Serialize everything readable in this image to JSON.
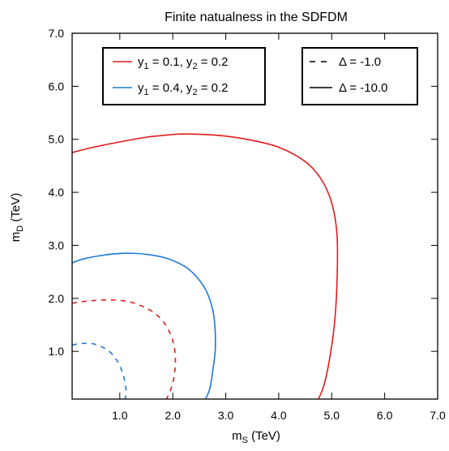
{
  "chart_data": {
    "type": "line",
    "title": "Finite natualness in the SDFDM",
    "xlabel": {
      "main": "m",
      "sub": "S",
      "unit": " (TeV)"
    },
    "ylabel": {
      "main": "m",
      "sub": "D",
      "unit": " (TeV)"
    },
    "xlim": [
      0.1,
      7.0
    ],
    "ylim": [
      0.1,
      7.0
    ],
    "xticks": [
      1.0,
      2.0,
      3.0,
      4.0,
      5.0,
      6.0,
      7.0
    ],
    "xtick_labels": [
      "1.0",
      "2.0",
      "3.0",
      "4.0",
      "5.0",
      "6.0",
      "7.0"
    ],
    "yticks": [
      1.0,
      2.0,
      3.0,
      4.0,
      5.0,
      6.0,
      7.0
    ],
    "ytick_labels": [
      "1.0",
      "2.0",
      "3.0",
      "4.0",
      "5.0",
      "6.0",
      "7.0"
    ],
    "grid": false,
    "legend_colors": {
      "placement": "top-left",
      "entries": [
        {
          "color": "#e31a1c",
          "y1": "0.1",
          "y2": "0.2"
        },
        {
          "color": "#1f78d8",
          "y1": "0.4",
          "y2": "0.2"
        }
      ]
    },
    "legend_styles": {
      "placement": "top-right",
      "entries": [
        {
          "dash": "dashed",
          "label": "Δ = -1.0"
        },
        {
          "dash": "solid",
          "label": "Δ = -10.0"
        }
      ]
    },
    "series": [
      {
        "color": "#e31a1c",
        "dash": "solid",
        "x": [
          0.1,
          0.5,
          1.0,
          1.5,
          2.0,
          2.2,
          2.6,
          3.0,
          3.5,
          4.0,
          4.5,
          4.8,
          5.0,
          5.1,
          5.1,
          5.05,
          4.95,
          4.85,
          4.75
        ],
        "y": [
          4.75,
          4.85,
          4.95,
          5.04,
          5.09,
          5.1,
          5.09,
          5.06,
          4.98,
          4.85,
          4.58,
          4.25,
          3.8,
          3.2,
          2.3,
          1.5,
          0.8,
          0.35,
          0.1
        ]
      },
      {
        "color": "#1f78d8",
        "dash": "solid",
        "x": [
          0.1,
          0.3,
          0.6,
          0.9,
          1.2,
          1.5,
          1.9,
          2.3,
          2.6,
          2.75,
          2.8,
          2.8,
          2.75,
          2.7,
          2.62
        ],
        "y": [
          2.67,
          2.74,
          2.8,
          2.84,
          2.85,
          2.83,
          2.75,
          2.55,
          2.2,
          1.8,
          1.4,
          1.0,
          0.6,
          0.3,
          0.1
        ]
      },
      {
        "color": "#e31a1c",
        "dash": "dashed",
        "x": [
          0.1,
          0.4,
          0.8,
          1.2,
          1.6,
          1.85,
          2.0,
          2.05,
          2.02,
          1.95,
          1.88
        ],
        "y": [
          1.91,
          1.95,
          1.97,
          1.93,
          1.76,
          1.52,
          1.2,
          0.85,
          0.5,
          0.25,
          0.1
        ]
      },
      {
        "color": "#1f78d8",
        "dash": "dashed",
        "x": [
          0.1,
          0.3,
          0.55,
          0.8,
          0.95,
          1.05,
          1.1,
          1.12,
          1.1
        ],
        "y": [
          1.12,
          1.15,
          1.13,
          1.0,
          0.82,
          0.6,
          0.4,
          0.22,
          0.1
        ]
      }
    ]
  }
}
